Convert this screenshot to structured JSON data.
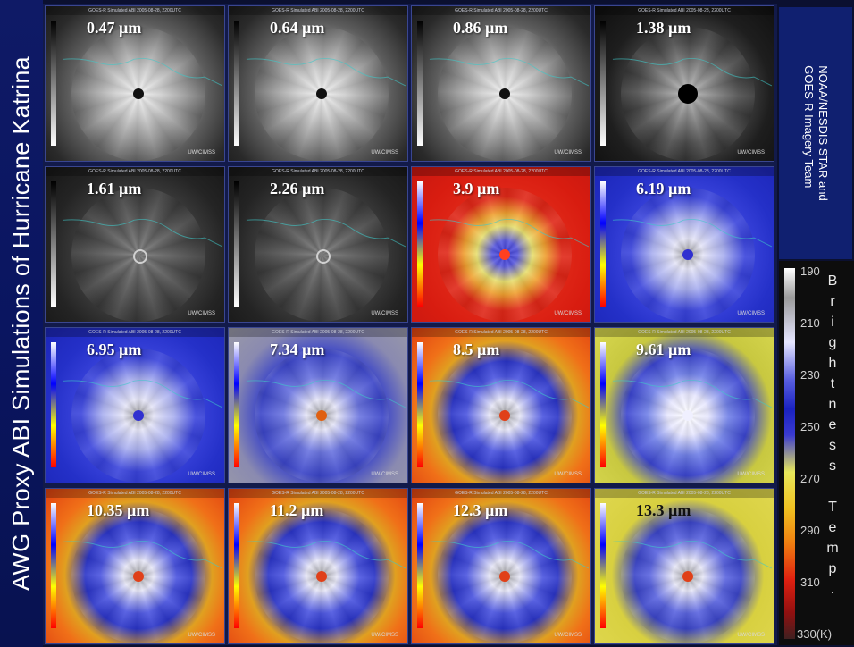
{
  "title": "AWG Proxy ABI Simulations of Hurricane Katrina",
  "credit": [
    "NOAA/NESDIS  STAR and",
    "GOES-R Imagery Team"
  ],
  "panel_header": "GOES-R Simulated ABI 2005-08-28, 2200UTC",
  "panel_credit": "UW/CIMSS",
  "panels": [
    {
      "label": "0.47 µm",
      "style": "vis"
    },
    {
      "label": "0.64 µm",
      "style": "vis"
    },
    {
      "label": "0.86 µm",
      "style": "vis"
    },
    {
      "label": "1.38 µm",
      "style": "dark"
    },
    {
      "label": "1.61 µm",
      "style": "nir"
    },
    {
      "label": "2.26 µm",
      "style": "nir"
    },
    {
      "label": "3.9 µm",
      "style": "red"
    },
    {
      "label": "6.19 µm",
      "style": "blue"
    },
    {
      "label": "6.95 µm",
      "style": "blue"
    },
    {
      "label": "7.34 µm",
      "style": "grayblue"
    },
    {
      "label": "8.5 µm",
      "style": "orange"
    },
    {
      "label": "9.61 µm",
      "style": "yellowblue"
    },
    {
      "label": "10.35 µm",
      "style": "orange"
    },
    {
      "label": "11.2 µm",
      "style": "orange"
    },
    {
      "label": "12.3 µm",
      "style": "orange"
    },
    {
      "label": "13.3 µm",
      "style": "yellow"
    }
  ],
  "scale": {
    "ticks": [
      "190",
      "210",
      "230",
      "250",
      "270",
      "290",
      "310",
      "330(K)"
    ],
    "label_letters": [
      "B",
      "r",
      "i",
      "g",
      "h",
      "t",
      "n",
      "e",
      "s",
      "s",
      " ",
      "T",
      "e",
      "m",
      "p",
      "."
    ]
  },
  "colors": {
    "title_bg": "#0a1560",
    "credit_bg": "#102070"
  }
}
